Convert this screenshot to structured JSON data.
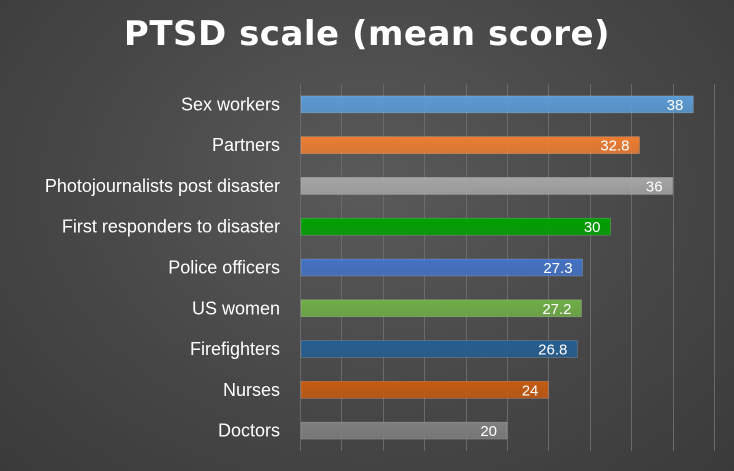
{
  "chart_data": {
    "type": "bar",
    "orientation": "horizontal",
    "title": "PTSD scale (mean score)",
    "categories": [
      "Sex workers",
      "Partners",
      "Photojournalists post disaster",
      "First responders to disaster",
      "Police officers",
      "US women",
      "Firefighters",
      "Nurses",
      "Doctors"
    ],
    "values": [
      38,
      32.8,
      36,
      30,
      27.3,
      27.2,
      26.8,
      24,
      20
    ],
    "value_labels": [
      "38",
      "32.8",
      "36",
      "30",
      "27.3",
      "27.2",
      "26.8",
      "24",
      "20"
    ],
    "colors": [
      "#5b9bd5",
      "#ed7d31",
      "#a5a5a5",
      "#00a000",
      "#4472c4",
      "#70ad47",
      "#255e91",
      "#c55a11",
      "#7f7f7f"
    ],
    "xlim": [
      0,
      40
    ],
    "grid": true,
    "legend": "none"
  }
}
